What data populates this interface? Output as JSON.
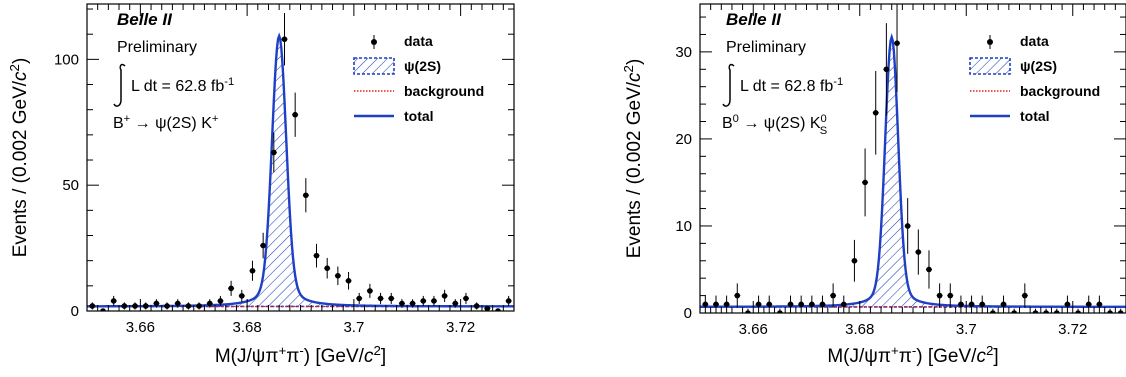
{
  "chart_data": [
    {
      "type": "scatter",
      "experiment": "Belle II",
      "status": "Preliminary",
      "luminosity": {
        "lead": "L dt = 62.8 fb",
        "exp": "-1"
      },
      "decay": {
        "parts": [
          {
            "t": "B",
            "s": "n"
          },
          {
            "t": "+",
            "s": "sup"
          },
          {
            "t": " → ψ(2S) K",
            "s": "n"
          },
          {
            "t": "+",
            "s": "sup"
          }
        ]
      },
      "xlabel": {
        "parts": [
          {
            "t": "M(J/ψπ",
            "s": "n"
          },
          {
            "t": "+",
            "s": "sup"
          },
          {
            "t": "π",
            "s": "n"
          },
          {
            "t": "-",
            "s": "sup"
          },
          {
            "t": ") [GeV/",
            "s": "n"
          },
          {
            "t": "c",
            "s": "it"
          },
          {
            "t": "2",
            "s": "sup"
          },
          {
            "t": "]",
            "s": "n"
          }
        ]
      },
      "ylabel": {
        "parts": [
          {
            "t": "Events / (0.002 GeV/",
            "s": "n"
          },
          {
            "t": "c",
            "s": "it"
          },
          {
            "t": "2",
            "s": "sup"
          },
          {
            "t": ")",
            "s": "n"
          }
        ]
      },
      "xlim": [
        3.65,
        3.73
      ],
      "ylim": [
        0,
        122
      ],
      "xticks": [
        3.66,
        3.68,
        3.7,
        3.72
      ],
      "xtick_labels": [
        "3.66",
        "3.68",
        "3.7",
        "3.72"
      ],
      "yticks": [
        0,
        50,
        100
      ],
      "ytick_labels": [
        "0",
        "50",
        "100"
      ],
      "legend": [
        {
          "key": "data",
          "label": "data"
        },
        {
          "key": "signal",
          "label": "ψ(2S)"
        },
        {
          "key": "background",
          "label": "background"
        },
        {
          "key": "total",
          "label": "total"
        }
      ],
      "legend_position": "top-right",
      "model": {
        "peak": 3.686,
        "amplitude": 107.5,
        "sigma": 0.0013,
        "gamma": 0.0025,
        "lorentz_fraction": 0.13,
        "background": 1.8
      },
      "series": [
        {
          "name": "data",
          "x": [
            3.651,
            3.653,
            3.655,
            3.657,
            3.659,
            3.661,
            3.663,
            3.665,
            3.667,
            3.669,
            3.671,
            3.673,
            3.675,
            3.677,
            3.679,
            3.681,
            3.683,
            3.685,
            3.687,
            3.689,
            3.691,
            3.693,
            3.695,
            3.697,
            3.699,
            3.701,
            3.703,
            3.705,
            3.707,
            3.709,
            3.711,
            3.713,
            3.715,
            3.717,
            3.719,
            3.721,
            3.723,
            3.725,
            3.727,
            3.729
          ],
          "y": [
            2,
            0,
            4,
            2,
            2,
            2,
            3,
            2,
            3,
            2,
            2,
            3,
            4,
            9,
            6,
            16,
            26,
            63,
            108,
            78,
            46,
            22,
            17,
            14,
            12,
            5,
            8,
            5,
            5,
            3,
            3,
            4,
            4,
            6,
            3,
            5,
            2,
            1,
            0,
            4
          ],
          "yerr": [
            1.4,
            1,
            2,
            1.4,
            1.4,
            1.4,
            1.7,
            1.4,
            1.7,
            1.4,
            1.4,
            1.7,
            2,
            3,
            2.4,
            4,
            5.1,
            7.9,
            10.4,
            8.8,
            6.8,
            4.7,
            4.1,
            3.7,
            3.5,
            2.2,
            2.8,
            2.2,
            2.2,
            1.7,
            1.7,
            2,
            2,
            2.4,
            1.7,
            2.2,
            1.4,
            1,
            1,
            2
          ]
        }
      ]
    },
    {
      "type": "scatter",
      "experiment": "Belle II",
      "status": "Preliminary",
      "luminosity": {
        "lead": "L dt = 62.8 fb",
        "exp": "-1"
      },
      "decay": {
        "parts": [
          {
            "t": "B",
            "s": "n"
          },
          {
            "t": "0",
            "s": "sup"
          },
          {
            "t": " → ψ(2S) K",
            "s": "n"
          },
          {
            "t": "0",
            "s": "supsub",
            "sub": "S"
          }
        ]
      },
      "xlabel": {
        "parts": [
          {
            "t": "M(J/ψπ",
            "s": "n"
          },
          {
            "t": "+",
            "s": "sup"
          },
          {
            "t": "π",
            "s": "n"
          },
          {
            "t": "-",
            "s": "sup"
          },
          {
            "t": ") [GeV/",
            "s": "n"
          },
          {
            "t": "c",
            "s": "it"
          },
          {
            "t": "2",
            "s": "sup"
          },
          {
            "t": "]",
            "s": "n"
          }
        ]
      },
      "ylabel": {
        "parts": [
          {
            "t": "Events / (0.002 GeV/",
            "s": "n"
          },
          {
            "t": "c",
            "s": "it"
          },
          {
            "t": "2",
            "s": "sup"
          },
          {
            "t": ")",
            "s": "n"
          }
        ]
      },
      "xlim": [
        3.65,
        3.73
      ],
      "ylim": [
        0,
        35.5
      ],
      "xticks": [
        3.66,
        3.68,
        3.7,
        3.72
      ],
      "xtick_labels": [
        "3.66",
        "3.68",
        "3.7",
        "3.72"
      ],
      "yticks": [
        0,
        10,
        20,
        30
      ],
      "ytick_labels": [
        "0",
        "10",
        "20",
        "30"
      ],
      "legend": [
        {
          "key": "data",
          "label": "data"
        },
        {
          "key": "signal",
          "label": "ψ(2S)"
        },
        {
          "key": "background",
          "label": "background"
        },
        {
          "key": "total",
          "label": "total"
        }
      ],
      "legend_position": "top-right",
      "model": {
        "peak": 3.686,
        "amplitude": 31,
        "sigma": 0.0012,
        "gamma": 0.0024,
        "lorentz_fraction": 0.12,
        "background": 0.7
      },
      "series": [
        {
          "name": "data",
          "x": [
            3.651,
            3.653,
            3.655,
            3.657,
            3.659,
            3.661,
            3.663,
            3.665,
            3.667,
            3.669,
            3.671,
            3.673,
            3.675,
            3.677,
            3.679,
            3.681,
            3.683,
            3.685,
            3.687,
            3.689,
            3.691,
            3.693,
            3.695,
            3.697,
            3.699,
            3.701,
            3.703,
            3.705,
            3.707,
            3.709,
            3.711,
            3.713,
            3.715,
            3.717,
            3.719,
            3.721,
            3.723,
            3.725,
            3.727,
            3.729
          ],
          "y": [
            1,
            1,
            1,
            2,
            0,
            1,
            1,
            0,
            1,
            1,
            1,
            1,
            2,
            1,
            6,
            15,
            23,
            28,
            31,
            10,
            7,
            5,
            2,
            2,
            1,
            1,
            1,
            0,
            1,
            0,
            2,
            0,
            0,
            0,
            1,
            0,
            1,
            1,
            0,
            0
          ],
          "yerr": [
            1,
            1,
            1,
            1.4,
            0.5,
            1,
            1,
            0.5,
            1,
            1,
            1,
            1,
            1.4,
            1,
            2.4,
            3.9,
            4.8,
            5.3,
            5.6,
            3.2,
            2.6,
            2.2,
            1.4,
            1.4,
            1,
            1,
            1,
            0.5,
            1,
            0.5,
            1.4,
            0.5,
            0.5,
            0.5,
            1,
            0.5,
            1,
            1,
            0.5,
            0.5
          ]
        }
      ]
    }
  ],
  "colors": {
    "axis": "#000000",
    "signal": "#1f3fc4",
    "total": "#1f3fc4",
    "background": "#e02020",
    "data": "#000000"
  }
}
